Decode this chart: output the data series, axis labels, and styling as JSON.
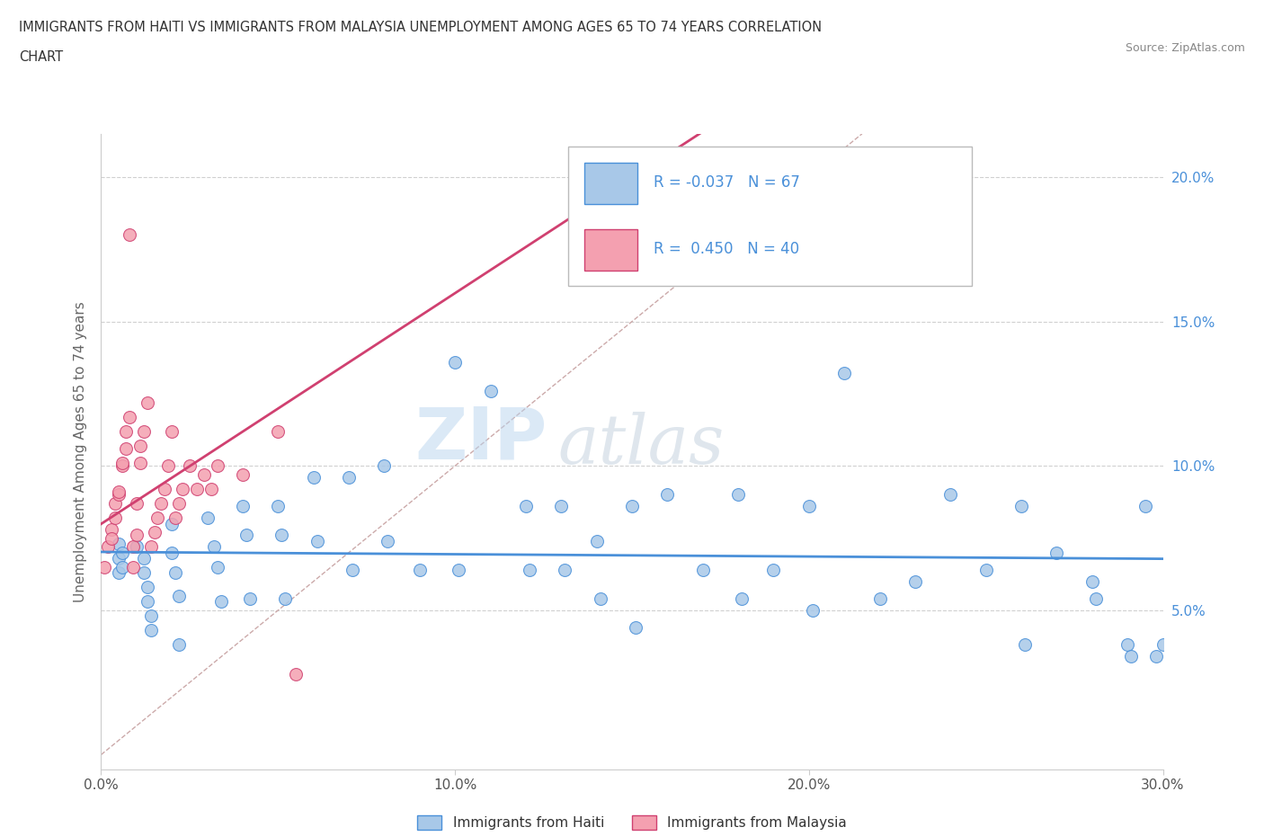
{
  "title_line1": "IMMIGRANTS FROM HAITI VS IMMIGRANTS FROM MALAYSIA UNEMPLOYMENT AMONG AGES 65 TO 74 YEARS CORRELATION",
  "title_line2": "CHART",
  "source_text": "Source: ZipAtlas.com",
  "ylabel": "Unemployment Among Ages 65 to 74 years",
  "xlim": [
    0.0,
    0.3
  ],
  "ylim": [
    -0.005,
    0.215
  ],
  "yticks": [
    0.05,
    0.1,
    0.15,
    0.2
  ],
  "ytick_labels": [
    "5.0%",
    "10.0%",
    "15.0%",
    "20.0%"
  ],
  "xticks": [
    0.0,
    0.1,
    0.2,
    0.3
  ],
  "xtick_labels": [
    "0.0%",
    "10.0%",
    "20.0%",
    "30.0%"
  ],
  "haiti_color": "#a8c8e8",
  "malaysia_color": "#f4a0b0",
  "haiti_line_color": "#4a90d9",
  "malaysia_line_color": "#d04070",
  "haiti_R": -0.037,
  "haiti_N": 67,
  "malaysia_R": 0.45,
  "malaysia_N": 40,
  "legend_haiti": "Immigrants from Haiti",
  "legend_malaysia": "Immigrants from Malaysia",
  "watermark_zip": "ZIP",
  "watermark_atlas": "atlas",
  "haiti_scatter_x": [
    0.005,
    0.005,
    0.005,
    0.006,
    0.006,
    0.01,
    0.012,
    0.012,
    0.013,
    0.013,
    0.014,
    0.014,
    0.02,
    0.02,
    0.021,
    0.022,
    0.022,
    0.03,
    0.032,
    0.033,
    0.034,
    0.04,
    0.041,
    0.042,
    0.05,
    0.051,
    0.052,
    0.06,
    0.061,
    0.07,
    0.071,
    0.08,
    0.081,
    0.09,
    0.1,
    0.101,
    0.11,
    0.12,
    0.121,
    0.13,
    0.131,
    0.14,
    0.141,
    0.15,
    0.151,
    0.16,
    0.17,
    0.18,
    0.181,
    0.19,
    0.2,
    0.201,
    0.21,
    0.22,
    0.23,
    0.24,
    0.25,
    0.26,
    0.261,
    0.27,
    0.28,
    0.281,
    0.29,
    0.291,
    0.295,
    0.298,
    0.3
  ],
  "haiti_scatter_y": [
    0.073,
    0.068,
    0.063,
    0.07,
    0.065,
    0.072,
    0.068,
    0.063,
    0.058,
    0.053,
    0.048,
    0.043,
    0.08,
    0.07,
    0.063,
    0.055,
    0.038,
    0.082,
    0.072,
    0.065,
    0.053,
    0.086,
    0.076,
    0.054,
    0.086,
    0.076,
    0.054,
    0.096,
    0.074,
    0.096,
    0.064,
    0.1,
    0.074,
    0.064,
    0.136,
    0.064,
    0.126,
    0.086,
    0.064,
    0.086,
    0.064,
    0.074,
    0.054,
    0.086,
    0.044,
    0.09,
    0.064,
    0.09,
    0.054,
    0.064,
    0.086,
    0.05,
    0.132,
    0.054,
    0.06,
    0.09,
    0.064,
    0.086,
    0.038,
    0.07,
    0.06,
    0.054,
    0.038,
    0.034,
    0.086,
    0.034,
    0.038
  ],
  "malaysia_scatter_x": [
    0.001,
    0.002,
    0.003,
    0.003,
    0.004,
    0.004,
    0.005,
    0.005,
    0.006,
    0.006,
    0.007,
    0.007,
    0.008,
    0.008,
    0.009,
    0.009,
    0.01,
    0.01,
    0.011,
    0.011,
    0.012,
    0.013,
    0.014,
    0.015,
    0.016,
    0.017,
    0.018,
    0.019,
    0.02,
    0.021,
    0.022,
    0.023,
    0.025,
    0.027,
    0.029,
    0.031,
    0.033,
    0.04,
    0.05,
    0.055
  ],
  "malaysia_scatter_y": [
    0.065,
    0.072,
    0.078,
    0.075,
    0.082,
    0.087,
    0.09,
    0.091,
    0.1,
    0.101,
    0.106,
    0.112,
    0.117,
    0.18,
    0.065,
    0.072,
    0.076,
    0.087,
    0.101,
    0.107,
    0.112,
    0.122,
    0.072,
    0.077,
    0.082,
    0.087,
    0.092,
    0.1,
    0.112,
    0.082,
    0.087,
    0.092,
    0.1,
    0.092,
    0.097,
    0.092,
    0.1,
    0.097,
    0.112,
    0.028
  ]
}
